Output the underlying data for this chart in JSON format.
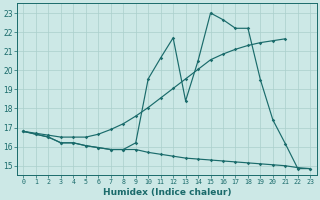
{
  "xlabel": "Humidex (Indice chaleur)",
  "bg_color": "#cce8e6",
  "grid_color": "#aacfcc",
  "line_color": "#1a6b6b",
  "x_ticks": [
    0,
    1,
    2,
    3,
    4,
    5,
    6,
    7,
    8,
    9,
    10,
    11,
    12,
    13,
    14,
    15,
    16,
    17,
    18,
    19,
    20,
    21,
    22,
    23
  ],
  "y_ticks": [
    15,
    16,
    17,
    18,
    19,
    20,
    21,
    22,
    23
  ],
  "xlim": [
    -0.5,
    23.5
  ],
  "ylim": [
    14.5,
    23.5
  ],
  "line1_x": [
    0,
    1,
    2,
    3,
    4,
    5,
    6,
    7,
    8,
    9,
    10,
    11,
    12,
    13,
    14,
    15,
    16,
    17,
    18,
    19,
    20,
    21,
    22,
    23
  ],
  "line1_y": [
    16.8,
    16.65,
    16.5,
    16.2,
    16.2,
    16.05,
    15.95,
    15.85,
    15.85,
    16.2,
    19.55,
    20.65,
    21.7,
    18.4,
    20.5,
    23.0,
    22.65,
    22.2,
    22.2,
    19.5,
    17.4,
    16.15,
    14.85,
    14.85
  ],
  "line2_x": [
    0,
    1,
    2,
    3,
    4,
    5,
    6,
    7,
    8,
    9,
    10,
    11,
    12,
    13,
    14,
    15,
    16,
    17,
    18,
    19,
    20,
    21
  ],
  "line2_y": [
    16.8,
    16.7,
    16.6,
    16.5,
    16.5,
    16.5,
    16.65,
    16.9,
    17.2,
    17.6,
    18.05,
    18.55,
    19.05,
    19.55,
    20.05,
    20.55,
    20.85,
    21.1,
    21.3,
    21.45,
    21.55,
    21.65
  ],
  "line3_x": [
    0,
    1,
    2,
    3,
    4,
    5,
    6,
    7,
    8,
    9,
    10,
    11,
    12,
    13,
    14,
    15,
    16,
    17,
    18,
    19,
    20,
    21,
    22,
    23
  ],
  "line3_y": [
    16.8,
    16.65,
    16.5,
    16.2,
    16.2,
    16.05,
    15.95,
    15.85,
    15.85,
    15.85,
    15.7,
    15.6,
    15.5,
    15.4,
    15.35,
    15.3,
    15.25,
    15.2,
    15.15,
    15.1,
    15.05,
    15.0,
    14.9,
    14.85
  ]
}
